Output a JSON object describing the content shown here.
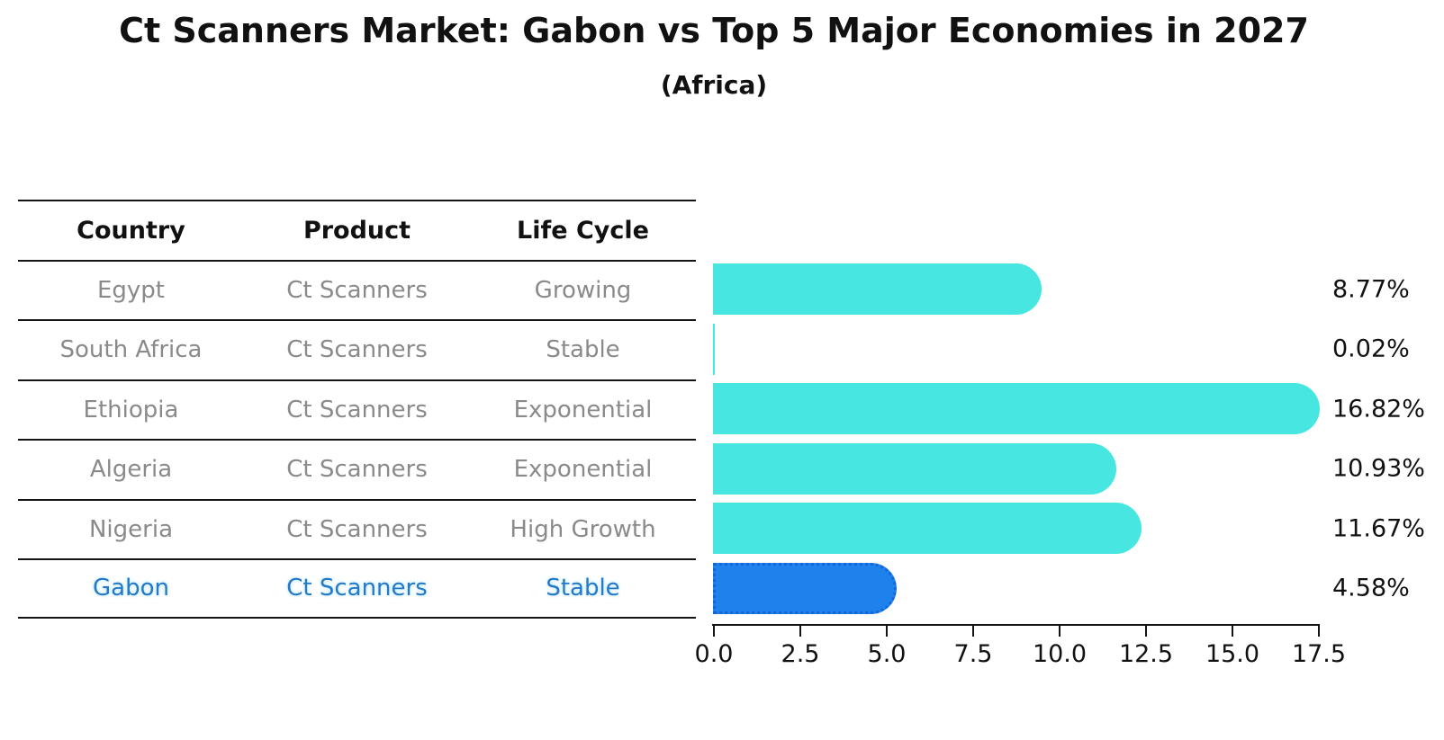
{
  "title": "Ct Scanners Market: Gabon vs Top 5 Major Economies in 2027",
  "subtitle": "(Africa)",
  "table": {
    "headers": {
      "country": "Country",
      "product": "Product",
      "life_cycle": "Life Cycle"
    },
    "rows": [
      {
        "country": "Egypt",
        "product": "Ct Scanners",
        "life_cycle": "Growing"
      },
      {
        "country": "South Africa",
        "product": "Ct Scanners",
        "life_cycle": "Stable"
      },
      {
        "country": "Ethiopia",
        "product": "Ct Scanners",
        "life_cycle": "Exponential"
      },
      {
        "country": "Algeria",
        "product": "Ct Scanners",
        "life_cycle": "Exponential"
      },
      {
        "country": "Nigeria",
        "product": "Ct Scanners",
        "life_cycle": "High Growth"
      },
      {
        "country": "Gabon",
        "product": "Ct Scanners",
        "life_cycle": "Stable"
      }
    ],
    "highlight_row": "Gabon"
  },
  "chart_data": {
    "type": "bar",
    "orientation": "horizontal",
    "categories": [
      "Egypt",
      "South Africa",
      "Ethiopia",
      "Algeria",
      "Nigeria",
      "Gabon"
    ],
    "values": [
      8.77,
      0.02,
      16.82,
      10.93,
      11.67,
      4.58
    ],
    "value_labels": [
      "8.77%",
      "0.02%",
      "16.82%",
      "10.93%",
      "11.67%",
      "4.58%"
    ],
    "xlim": [
      0,
      17.5
    ],
    "xticks": [
      "0.0",
      "2.5",
      "5.0",
      "7.5",
      "10.0",
      "12.5",
      "15.0",
      "17.5"
    ],
    "grid": false,
    "legend": false,
    "bar_color": "#48e6e0",
    "highlight_bar_color": "#1e82ec",
    "highlight_bar_border": "#1565d8",
    "highlight_index": 5
  }
}
